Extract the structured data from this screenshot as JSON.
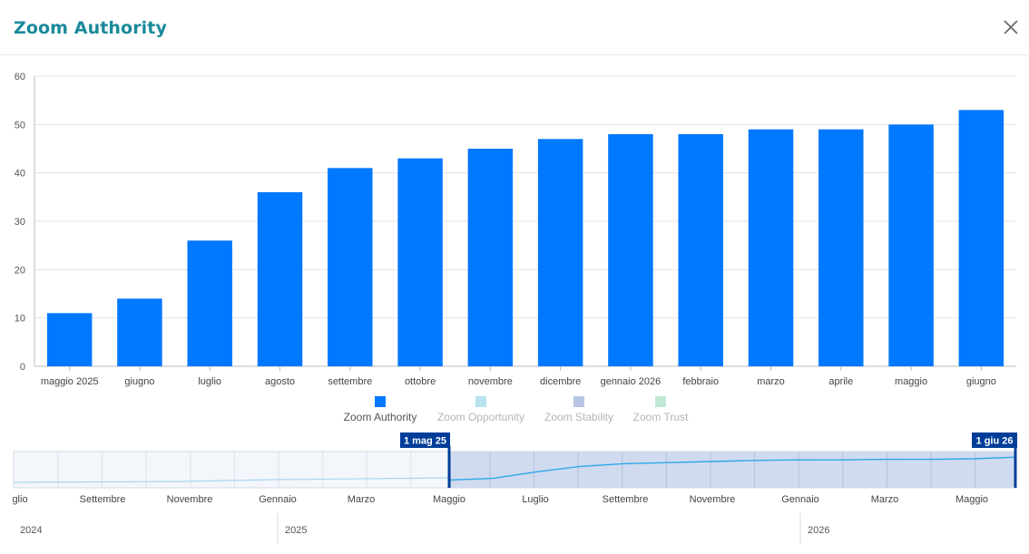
{
  "header": {
    "title": "Zoom Authority",
    "close_icon": "close-icon"
  },
  "chart_data": {
    "type": "bar",
    "categories": [
      "maggio 2025",
      "giugno",
      "luglio",
      "agosto",
      "settembre",
      "ottobre",
      "novembre",
      "dicembre",
      "gennaio 2026",
      "febbraio",
      "marzo",
      "aprile",
      "maggio",
      "giugno"
    ],
    "series": [
      {
        "name": "Zoom Authority",
        "values": [
          11,
          14,
          26,
          36,
          41,
          43,
          45,
          47,
          48,
          48,
          49,
          49,
          50,
          53
        ],
        "color": "#0078ff"
      }
    ],
    "ylim": [
      0,
      60
    ],
    "yticks": [
      0,
      10,
      20,
      30,
      40,
      50,
      60
    ],
    "grid": true,
    "legend": [
      {
        "name": "Zoom Authority",
        "color": "#0078ff",
        "active": true
      },
      {
        "name": "Zoom Opportunity",
        "color": "#b8e2ee",
        "active": false
      },
      {
        "name": "Zoom Stability",
        "color": "#b9c5e4",
        "active": false
      },
      {
        "name": "Zoom Trust",
        "color": "#bfe9d3",
        "active": false
      }
    ],
    "legend_position": "bottom"
  },
  "navigator": {
    "range_start_label": "1 mag 25",
    "range_end_label": "1 giu 26",
    "month_labels": [
      "glio",
      "Settembre",
      "Novembre",
      "Gennaio",
      "Marzo",
      "Maggio",
      "Luglio",
      "Settembre",
      "Novembre",
      "Gennaio",
      "Marzo",
      "Maggio"
    ],
    "year_labels": [
      "2024",
      "2025",
      "2026"
    ],
    "colors": {
      "selection": "#c9d6ec",
      "handle": "#003d99",
      "line": "#2fa8e8"
    }
  }
}
